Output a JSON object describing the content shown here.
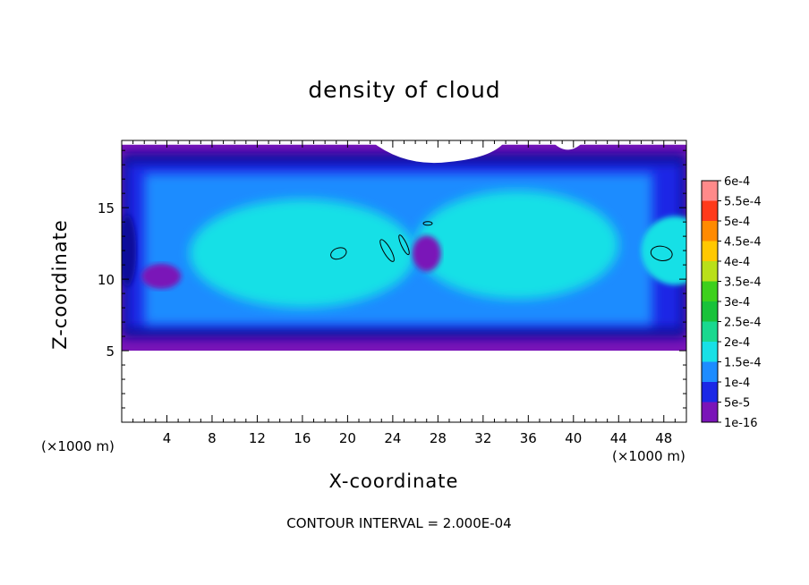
{
  "chart_data": {
    "type": "heatmap",
    "title": "density of cloud",
    "xlabel": "X-coordinate",
    "ylabel": "Z-coordinate",
    "x_unit_label": "(×1000 m)",
    "x_unit_label_right": "(×1000 m)",
    "footer": "CONTOUR INTERVAL = 2.000E-04",
    "xlim": [
      0,
      50
    ],
    "ylim": [
      0,
      19.7
    ],
    "x_ticks": [
      4,
      8,
      12,
      16,
      20,
      24,
      28,
      32,
      36,
      40,
      44,
      48
    ],
    "y_ticks": [
      5,
      10,
      15
    ],
    "colorbar": {
      "labels": [
        "1e-16",
        "5e-5",
        "1e-4",
        "1.5e-4",
        "2e-4",
        "2.5e-4",
        "3e-4",
        "3.5e-4",
        "4e-4",
        "4.5e-4",
        "5e-4",
        "5.5e-4",
        "6e-4"
      ],
      "colors": [
        "#7a14b8",
        "#0a0a9a",
        "#1b28e6",
        "#1d8cff",
        "#18e0e6",
        "#1ad88f",
        "#19c23a",
        "#3dd01c",
        "#b9e01a",
        "#ffc800",
        "#ff8a00",
        "#ff3a1a",
        "#ff8a8a"
      ]
    },
    "cloud_layer": {
      "bottom_km": 5.0,
      "top_km": 19.4,
      "core_bottom_km": 7.2,
      "core_top_km": 16.8
    },
    "contour_level": 0.0002
  }
}
